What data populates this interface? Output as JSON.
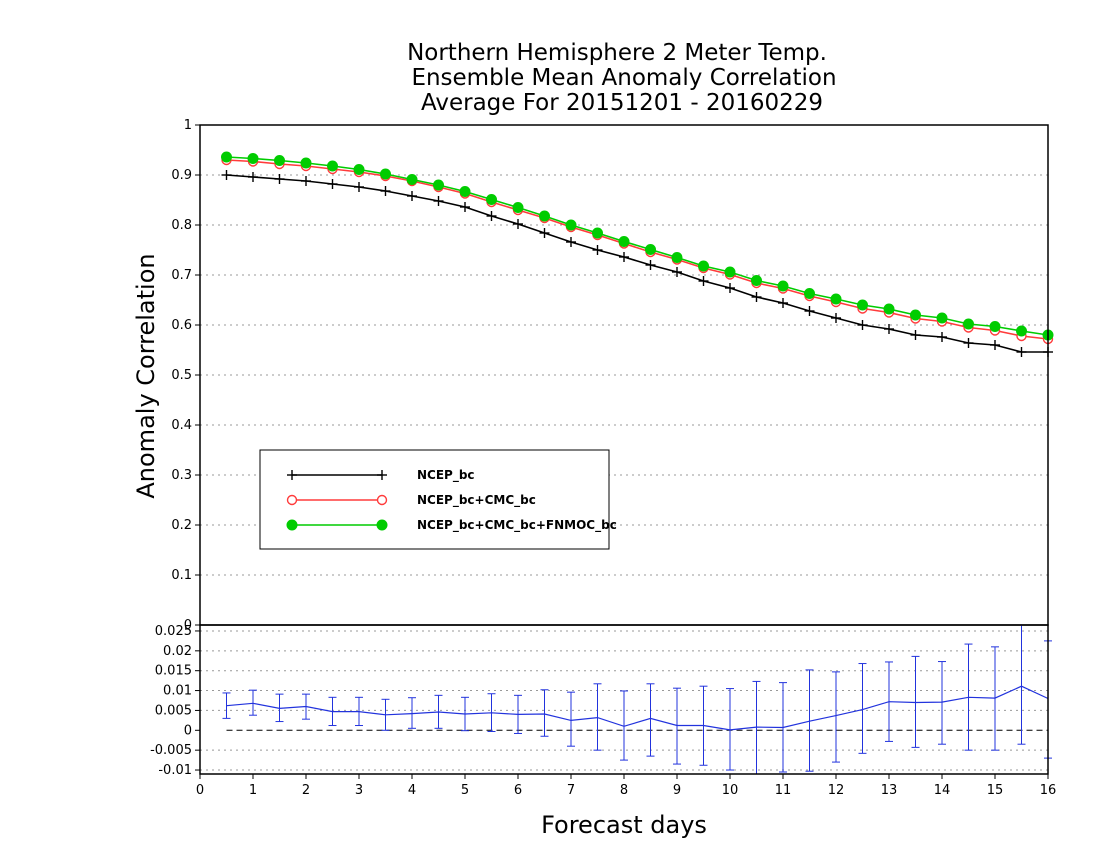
{
  "chart_data": [
    {
      "type": "line",
      "panel": "main",
      "title_lines": [
        "Northern Hemisphere 2 Meter Temp.",
        "Ensemble Mean Anomaly Correlation",
        "Average For 20151201 - 20160229"
      ],
      "ylabel": "Anomaly Correlation",
      "xlabel": "Forecast days",
      "xlim": [
        0,
        16
      ],
      "ylim": [
        0,
        1
      ],
      "x_ticks": [
        "0",
        "1",
        "2",
        "3",
        "4",
        "5",
        "6",
        "7",
        "8",
        "9",
        "10",
        "11",
        "12",
        "13",
        "14",
        "15",
        "16"
      ],
      "y_ticks": [
        "0",
        "0.1",
        "0.2",
        "0.3",
        "0.4",
        "0.5",
        "0.6",
        "0.7",
        "0.8",
        "0.9",
        "1"
      ],
      "grid": true,
      "legend_position": "center-left",
      "x": [
        0.5,
        1,
        1.5,
        2,
        2.5,
        3,
        3.5,
        4,
        4.5,
        5,
        5.5,
        6,
        6.5,
        7,
        7.5,
        8,
        8.5,
        9,
        9.5,
        10,
        10.5,
        11,
        11.5,
        12,
        12.5,
        13,
        13.5,
        14,
        14.5,
        15,
        15.5,
        16
      ],
      "series": [
        {
          "name": "NCEP_bc",
          "color": "#000000",
          "marker": "plus",
          "values": [
            0.9,
            0.896,
            0.892,
            0.888,
            0.882,
            0.876,
            0.868,
            0.858,
            0.848,
            0.836,
            0.818,
            0.802,
            0.784,
            0.766,
            0.75,
            0.736,
            0.72,
            0.706,
            0.688,
            0.674,
            0.656,
            0.644,
            0.628,
            0.614,
            0.6,
            0.592,
            0.58,
            0.576,
            0.564,
            0.56,
            0.546,
            0.546
          ]
        },
        {
          "name": "NCEP_bc+CMC_bc",
          "color": "#ff3b3b",
          "marker": "open-circle",
          "values": [
            0.93,
            0.927,
            0.922,
            0.918,
            0.912,
            0.906,
            0.898,
            0.888,
            0.876,
            0.863,
            0.846,
            0.83,
            0.814,
            0.796,
            0.78,
            0.763,
            0.746,
            0.731,
            0.714,
            0.701,
            0.684,
            0.673,
            0.658,
            0.646,
            0.633,
            0.625,
            0.613,
            0.607,
            0.595,
            0.589,
            0.578,
            0.572
          ]
        },
        {
          "name": "NCEP_bc+CMC_bc+FNMOC_bc",
          "color": "#00cc00",
          "marker": "filled-circle",
          "values": [
            0.936,
            0.933,
            0.929,
            0.924,
            0.918,
            0.911,
            0.902,
            0.891,
            0.88,
            0.867,
            0.851,
            0.835,
            0.818,
            0.8,
            0.784,
            0.767,
            0.751,
            0.735,
            0.718,
            0.706,
            0.689,
            0.678,
            0.663,
            0.652,
            0.64,
            0.632,
            0.62,
            0.614,
            0.602,
            0.597,
            0.588,
            0.58
          ]
        }
      ]
    },
    {
      "type": "line",
      "panel": "difference",
      "xlim": [
        0,
        16
      ],
      "ylim": [
        -0.011,
        0.0265
      ],
      "y_ticks": [
        "0.025",
        "0.02",
        "0.015",
        "0.01",
        "0.005",
        "0",
        "-0.005",
        "-0.01"
      ],
      "color": "#2233dd",
      "x": [
        0.5,
        1,
        1.5,
        2,
        2.5,
        3,
        3.5,
        4,
        4.5,
        5,
        5.5,
        6,
        6.5,
        7,
        7.5,
        8,
        8.5,
        9,
        9.5,
        10,
        10.5,
        11,
        11.5,
        12,
        12.5,
        13,
        13.5,
        14,
        14.5,
        15,
        15.5,
        16
      ],
      "values": [
        0.0062,
        0.0068,
        0.0055,
        0.006,
        0.0047,
        0.0047,
        0.0039,
        0.0042,
        0.0046,
        0.0041,
        0.0044,
        0.004,
        0.0041,
        0.0025,
        0.0032,
        0.001,
        0.003,
        0.0012,
        0.0012,
        0.0001,
        0.0008,
        0.0007,
        0.0023,
        0.0037,
        0.0052,
        0.0072,
        0.007,
        0.0071,
        0.0083,
        0.0081,
        0.0111,
        0.008
      ],
      "err_low": [
        0.003,
        0.0038,
        0.0022,
        0.0028,
        0.0012,
        0.0012,
        0.0,
        0.0005,
        0.0005,
        -0.0001,
        -0.0003,
        -0.0008,
        -0.0015,
        -0.004,
        -0.005,
        -0.0075,
        -0.0065,
        -0.0085,
        -0.0088,
        -0.01,
        -0.011,
        -0.0105,
        -0.0103,
        -0.008,
        -0.0058,
        -0.0028,
        -0.0043,
        -0.0035,
        -0.005,
        -0.005,
        -0.0035,
        -0.007
      ],
      "err_high": [
        0.0094,
        0.0101,
        0.0091,
        0.0091,
        0.0083,
        0.0083,
        0.0078,
        0.0082,
        0.0088,
        0.0083,
        0.0092,
        0.0088,
        0.0102,
        0.0096,
        0.0117,
        0.0099,
        0.0117,
        0.0106,
        0.0111,
        0.0105,
        0.0123,
        0.012,
        0.0152,
        0.0147,
        0.0168,
        0.0172,
        0.0186,
        0.0173,
        0.0217,
        0.021,
        0.029,
        0.0225
      ],
      "reference_zero": true
    }
  ]
}
